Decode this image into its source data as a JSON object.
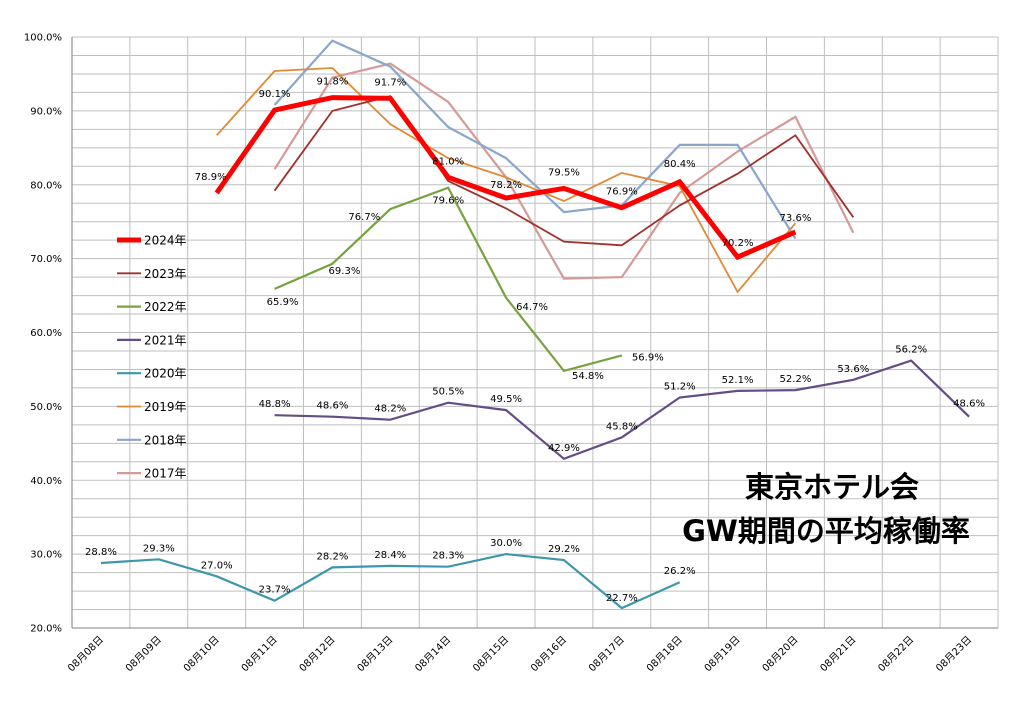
{
  "chart_data": {
    "type": "line",
    "title": "東京ホテル会",
    "subtitle": "GW期間の平均稼働率",
    "xlabel": "",
    "ylabel": "",
    "ylim": [
      20,
      100
    ],
    "yticks": [
      20,
      30,
      40,
      50,
      60,
      70,
      80,
      90,
      100
    ],
    "ytick_labels": [
      "20.0%",
      "30.0%",
      "40.0%",
      "50.0%",
      "60.0%",
      "70.0%",
      "80.0%",
      "90.0%",
      "100.0%"
    ],
    "categories": [
      "08月08日",
      "08月09日",
      "08月10日",
      "08月11日",
      "08月12日",
      "08月13日",
      "08月14日",
      "08月15日",
      "08月16日",
      "08月17日",
      "08月18日",
      "08月19日",
      "08月20日",
      "08月21日",
      "08月22日",
      "08月23日"
    ],
    "grid": true,
    "legend_position": "left",
    "series": [
      {
        "name": "2024年",
        "color": "#ff0000",
        "width": 5,
        "labels": true,
        "values": [
          null,
          null,
          78.9,
          90.1,
          91.8,
          91.7,
          81.0,
          78.2,
          79.5,
          76.9,
          80.4,
          70.2,
          73.6,
          null,
          null,
          null
        ]
      },
      {
        "name": "2023年",
        "color": "#a0302d",
        "width": 1.8,
        "labels": false,
        "values": [
          null,
          null,
          null,
          79.2,
          90.0,
          92.0,
          80.5,
          76.8,
          72.3,
          71.8,
          77.2,
          81.5,
          86.7,
          75.6,
          null,
          null
        ]
      },
      {
        "name": "2022年",
        "color": "#77a33f",
        "width": 2.2,
        "labels": true,
        "values": [
          null,
          null,
          null,
          65.9,
          69.3,
          76.7,
          79.6,
          64.7,
          54.8,
          56.9,
          null,
          null,
          null,
          null,
          null,
          null
        ]
      },
      {
        "name": "2021年",
        "color": "#654c86",
        "width": 2.2,
        "labels": true,
        "values": [
          null,
          null,
          null,
          48.8,
          48.6,
          48.2,
          50.5,
          49.5,
          42.9,
          45.8,
          51.2,
          52.1,
          52.2,
          53.6,
          56.2,
          48.6
        ]
      },
      {
        "name": "2020年",
        "color": "#3d97ab",
        "width": 2.2,
        "labels": true,
        "values": [
          28.8,
          29.3,
          27.0,
          23.7,
          28.2,
          28.4,
          28.3,
          30.0,
          29.2,
          22.7,
          26.2,
          null,
          null,
          null,
          null,
          null
        ]
      },
      {
        "name": "2019年",
        "color": "#e08a36",
        "width": 1.8,
        "labels": false,
        "values": [
          null,
          null,
          86.7,
          95.4,
          95.8,
          88.2,
          83.6,
          81.0,
          77.8,
          81.6,
          79.8,
          65.5,
          74.8,
          null,
          null,
          null
        ]
      },
      {
        "name": "2018年",
        "color": "#8aa6cc",
        "width": 2.2,
        "labels": false,
        "values": [
          null,
          null,
          null,
          90.8,
          99.5,
          96.0,
          87.8,
          83.6,
          76.3,
          77.2,
          85.4,
          85.4,
          72.7,
          null,
          null,
          null
        ]
      },
      {
        "name": "2017年",
        "color": "#d49a97",
        "width": 2.2,
        "labels": false,
        "values": [
          null,
          null,
          null,
          82.1,
          94.5,
          96.4,
          91.2,
          81.0,
          67.3,
          67.5,
          78.9,
          84.5,
          89.2,
          73.5,
          null,
          null
        ]
      }
    ]
  }
}
